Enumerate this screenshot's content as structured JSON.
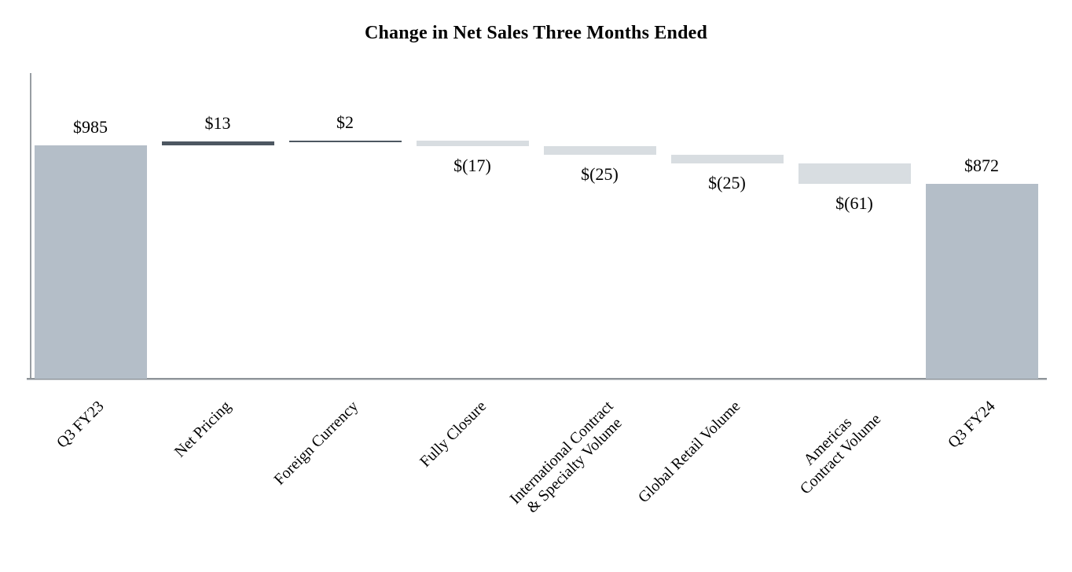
{
  "chart_data": {
    "type": "bar",
    "subtype": "waterfall",
    "title": "Change in Net Sales Three Months Ended",
    "xlabel": "",
    "ylabel": "",
    "ylim": [
      300,
      1200
    ],
    "grid": false,
    "legend": "none",
    "axis_tick_labels_hidden": true,
    "categories": [
      "Q3 FY23",
      "Net Pricing",
      "Foreign Currency",
      "Fully Closure",
      "International Contract & Specialty Volume",
      "Global Retail Volume",
      "Americas Contract Volume",
      "Q3 FY24"
    ],
    "steps": [
      {
        "label": "Q3 FY23",
        "label_lines": [
          "Q3 FY23"
        ],
        "type": "total",
        "value": 985,
        "display": "$985"
      },
      {
        "label": "Net Pricing",
        "label_lines": [
          "Net Pricing"
        ],
        "type": "increase",
        "value": 13,
        "display": "$13"
      },
      {
        "label": "Foreign Currency",
        "label_lines": [
          "Foreign Currency"
        ],
        "type": "increase",
        "value": 2,
        "display": "$2"
      },
      {
        "label": "Fully Closure",
        "label_lines": [
          "Fully Closure"
        ],
        "type": "decrease",
        "value": -17,
        "display": "$(17)"
      },
      {
        "label": "International Contract & Specialty Volume",
        "label_lines": [
          "International Contract",
          "& Specialty Volume"
        ],
        "type": "decrease",
        "value": -25,
        "display": "$(25)"
      },
      {
        "label": "Global Retail Volume",
        "label_lines": [
          "Global Retail Volume"
        ],
        "type": "decrease",
        "value": -25,
        "display": "$(25)"
      },
      {
        "label": "Americas Contract Volume",
        "label_lines": [
          "Americas",
          "Contract Volume"
        ],
        "type": "decrease",
        "value": -61,
        "display": "$(61)"
      },
      {
        "label": "Q3 FY24",
        "label_lines": [
          "Q3 FY24"
        ],
        "type": "total",
        "value": 872,
        "display": "$872"
      }
    ],
    "running_totals": [
      985,
      998,
      1000,
      983,
      958,
      933,
      872,
      872
    ],
    "colors": {
      "total_bar": "#b4bec8",
      "increase_bar": "#4d5761",
      "decrease_bar": "#d8dde1",
      "axis_line": "#90969b",
      "text": "#000000"
    }
  }
}
